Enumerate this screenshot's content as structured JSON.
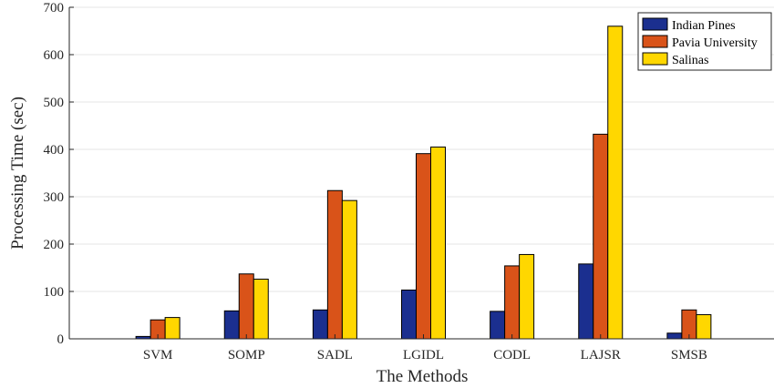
{
  "chart_data": {
    "type": "bar",
    "xlabel": "The Methods",
    "ylabel": "Processing Time (sec)",
    "categories": [
      "SVM",
      "SOMP",
      "SADL",
      "LGIDL",
      "CODL",
      "LAJSR",
      "SMSB"
    ],
    "ylim": [
      0,
      700
    ],
    "yticks": [
      0,
      100,
      200,
      300,
      400,
      500,
      600,
      700
    ],
    "grid": true,
    "legend_position": "top-right",
    "series": [
      {
        "name": "Indian Pines",
        "color": "#1b2f8f",
        "values": [
          5,
          59,
          61,
          103,
          58,
          158,
          12
        ]
      },
      {
        "name": "Pavia University",
        "color": "#d95319",
        "values": [
          40,
          137,
          313,
          391,
          154,
          432,
          61
        ]
      },
      {
        "name": "Salinas",
        "color": "#ffd700",
        "values": [
          45,
          126,
          292,
          405,
          178,
          660,
          51
        ]
      }
    ]
  }
}
